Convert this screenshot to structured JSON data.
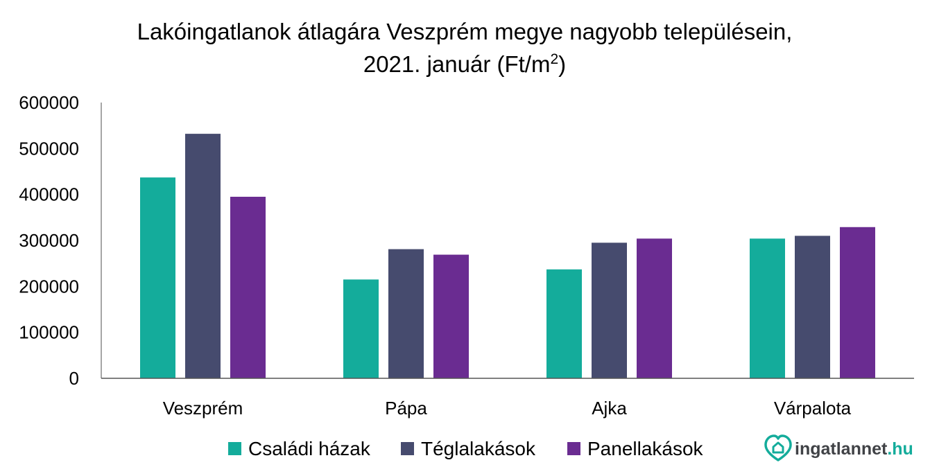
{
  "chart_data": {
    "type": "bar",
    "title_line1": "Lakóingatlanok átlagára Veszprém megye nagyobb településein,",
    "title_line2_prefix": "2021. január (Ft/m",
    "title_line2_sup": "2",
    "title_line2_suffix": ")",
    "categories": [
      "Veszprém",
      "Pápa",
      "Ajka",
      "Várpalota"
    ],
    "series": [
      {
        "name": "Családi házak",
        "color": "#14ac9b",
        "values": [
          437000,
          215000,
          237000,
          304000
        ]
      },
      {
        "name": "Téglalakások",
        "color": "#464b6e",
        "values": [
          532000,
          281000,
          295000,
          310000
        ]
      },
      {
        "name": "Panellakások",
        "color": "#6a2c91",
        "values": [
          395000,
          269000,
          304000,
          329000
        ]
      }
    ],
    "ylim": [
      0,
      600000
    ],
    "yticks": [
      "0",
      "100000",
      "200000",
      "300000",
      "400000",
      "500000",
      "600000"
    ],
    "grid": false,
    "legend_position": "bottom"
  },
  "logo": {
    "text": "ingatlannet",
    "tld": ".hu",
    "icon": "heart-house-icon",
    "color": "#14ac9b"
  }
}
